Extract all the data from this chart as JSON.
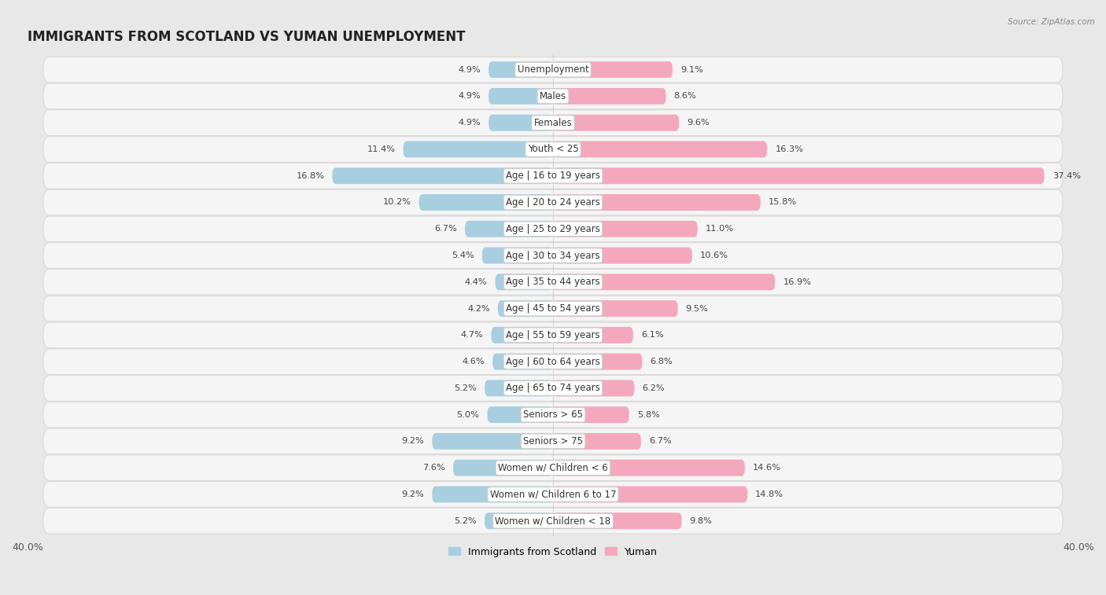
{
  "title": "IMMIGRANTS FROM SCOTLAND VS YUMAN UNEMPLOYMENT",
  "source": "Source: ZipAtlas.com",
  "categories": [
    "Unemployment",
    "Males",
    "Females",
    "Youth < 25",
    "Age | 16 to 19 years",
    "Age | 20 to 24 years",
    "Age | 25 to 29 years",
    "Age | 30 to 34 years",
    "Age | 35 to 44 years",
    "Age | 45 to 54 years",
    "Age | 55 to 59 years",
    "Age | 60 to 64 years",
    "Age | 65 to 74 years",
    "Seniors > 65",
    "Seniors > 75",
    "Women w/ Children < 6",
    "Women w/ Children 6 to 17",
    "Women w/ Children < 18"
  ],
  "scotland_values": [
    4.9,
    4.9,
    4.9,
    11.4,
    16.8,
    10.2,
    6.7,
    5.4,
    4.4,
    4.2,
    4.7,
    4.6,
    5.2,
    5.0,
    9.2,
    7.6,
    9.2,
    5.2
  ],
  "yuman_values": [
    9.1,
    8.6,
    9.6,
    16.3,
    37.4,
    15.8,
    11.0,
    10.6,
    16.9,
    9.5,
    6.1,
    6.8,
    6.2,
    5.8,
    6.7,
    14.6,
    14.8,
    9.8
  ],
  "scotland_color": "#a8cfe0",
  "yuman_color": "#f4a8be",
  "axis_limit": 40.0,
  "background_color": "#e8e8e8",
  "row_bg_color": "#f5f5f5",
  "row_alt_bg_color": "#ebebeb",
  "bar_height": 0.62,
  "title_fontsize": 12,
  "label_fontsize": 8.5,
  "value_fontsize": 8.2,
  "legend_label_scotland": "Immigrants from Scotland",
  "legend_label_yuman": "Yuman"
}
